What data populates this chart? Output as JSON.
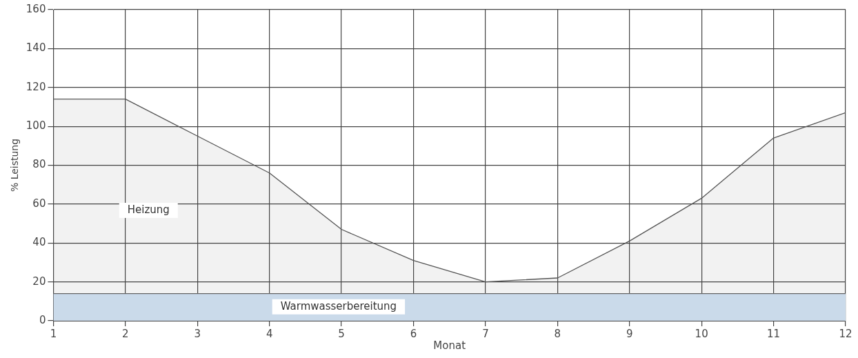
{
  "chart_data": {
    "type": "area",
    "xlabel": "Monat",
    "ylabel": "% Leistung",
    "x": [
      1,
      2,
      3,
      4,
      5,
      6,
      7,
      8,
      9,
      10,
      11,
      12
    ],
    "xlim": [
      1,
      12
    ],
    "xticks": [
      1,
      2,
      3,
      4,
      5,
      6,
      7,
      8,
      9,
      10,
      11,
      12
    ],
    "ylim": [
      0,
      160
    ],
    "yticks": [
      0,
      20,
      40,
      60,
      80,
      100,
      120,
      140,
      160
    ],
    "grid": true,
    "legend": false,
    "marker": "none",
    "series": [
      {
        "name": "Warmwasserbereitung",
        "color": "#d4e5f7",
        "values": [
          14,
          14,
          14,
          14,
          14,
          14,
          14,
          14,
          14,
          14,
          14,
          14
        ]
      },
      {
        "name": "Heizung",
        "color": "#555555",
        "values": [
          114,
          114,
          95,
          76,
          47,
          31,
          20,
          22,
          41,
          63,
          94,
          107
        ]
      }
    ]
  }
}
